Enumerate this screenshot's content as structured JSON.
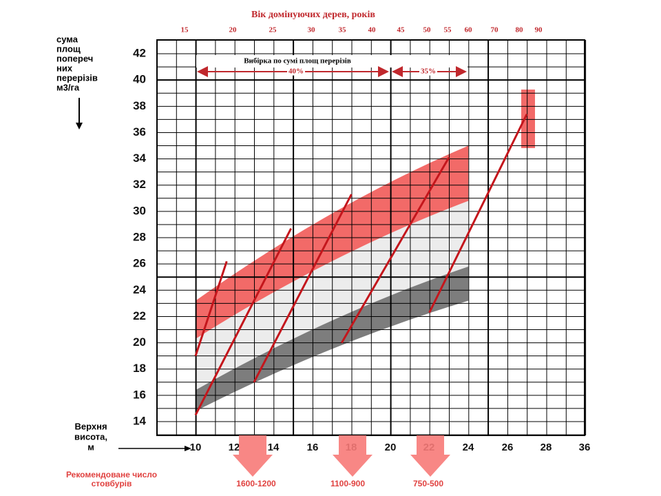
{
  "title": "Вік домінуючих дерев, років",
  "age_ticks": [
    15,
    20,
    25,
    30,
    35,
    40,
    45,
    50,
    55,
    60,
    70,
    80,
    90
  ],
  "y_axis": {
    "label_lines": [
      "сума",
      "площ",
      "попереч",
      "них",
      "перерізів",
      "м3/га"
    ],
    "ticks": [
      14,
      16,
      18,
      20,
      22,
      24,
      26,
      28,
      30,
      32,
      34,
      36,
      38,
      40,
      42
    ]
  },
  "x_axis": {
    "label_lines": [
      "Верхня",
      "висота,",
      "м"
    ],
    "ticks": [
      10,
      12,
      14,
      16,
      18,
      20,
      22,
      24,
      26,
      28,
      36
    ]
  },
  "selection": {
    "title": "Вибірка по сумі площ перерізів",
    "left": "40%",
    "right": "35%"
  },
  "recommended": {
    "label_lines": [
      "Рекомендоване число",
      "стовбурів"
    ],
    "ranges": [
      "1600-1200",
      "1100-900",
      "750-500"
    ]
  }
}
